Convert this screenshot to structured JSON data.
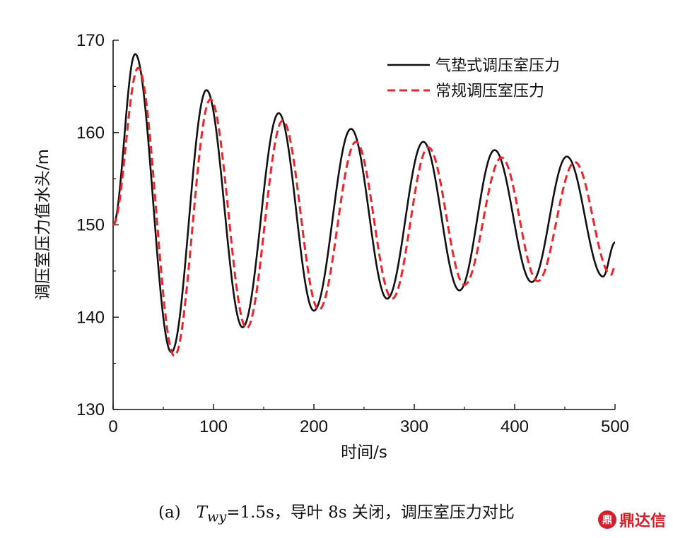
{
  "chart_data": {
    "type": "line",
    "xlabel": "时间/s",
    "ylabel": "调压室压力值水头/m",
    "xlim": [
      0,
      500
    ],
    "ylim": [
      130,
      170
    ],
    "xticks": [
      "0",
      "100",
      "200",
      "300",
      "400",
      "500"
    ],
    "yticks": [
      "130",
      "140",
      "150",
      "160",
      "170"
    ],
    "grid": false,
    "legend_position": "top-right",
    "series": [
      {
        "name": "气垫式调压室压力",
        "color": "#111111",
        "dash": "solid",
        "x": [
          0,
          22,
          58,
          93,
          129,
          165,
          200,
          237,
          273,
          309,
          345,
          380,
          417,
          452,
          488,
          500
        ],
        "y": [
          150,
          168.5,
          136.2,
          164.6,
          138.9,
          162.1,
          140.7,
          160.4,
          142.0,
          159.0,
          142.9,
          158.1,
          143.8,
          157.4,
          144.4,
          148.1
        ]
      },
      {
        "name": "常规调压室压力",
        "color": "#e8262b",
        "dash": "dashed",
        "x": [
          0,
          25,
          61,
          97,
          133,
          169,
          205,
          242,
          278,
          314,
          350,
          387,
          423,
          460,
          496,
          500
        ],
        "y": [
          150,
          167.0,
          135.8,
          163.6,
          138.8,
          161.3,
          140.8,
          159.0,
          142.0,
          158.4,
          143.5,
          157.3,
          143.9,
          156.8,
          144.6,
          145.5
        ]
      }
    ]
  },
  "caption": {
    "prefix": "(a)   ",
    "var": "T",
    "sub": "wy",
    "rest": "=1.5s，导叶 8s 关闭，调压室压力对比"
  },
  "watermark": {
    "logo": "鼎",
    "text": "鼎达信"
  }
}
